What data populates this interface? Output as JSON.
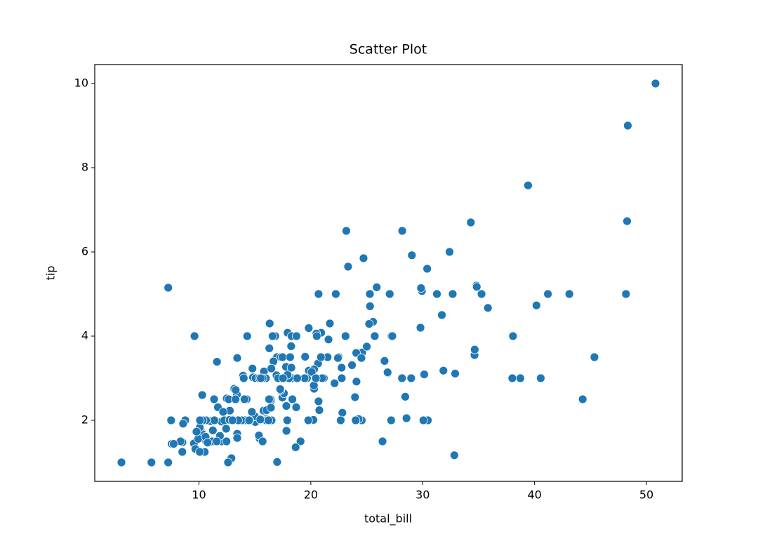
{
  "chart_data": {
    "type": "scatter",
    "title": "Scatter Plot",
    "x_label": "total_bill",
    "y_label": "tip",
    "color": "#1f77b4",
    "x": [
      16.99,
      10.34,
      21.01,
      23.68,
      24.59,
      25.29,
      8.77,
      26.88,
      15.04,
      14.78,
      10.27,
      35.26,
      15.42,
      18.43,
      14.83,
      21.58,
      10.33,
      16.29,
      16.97,
      20.65,
      17.92,
      20.29,
      15.77,
      39.42,
      19.82,
      17.81,
      13.37,
      12.69,
      21.7,
      19.65,
      9.55,
      18.35,
      15.06,
      20.69,
      17.78,
      24.06,
      16.31,
      16.93,
      18.69,
      31.27,
      16.04,
      17.46,
      13.94,
      9.68,
      30.4,
      18.29,
      22.23,
      32.4,
      28.55,
      18.04,
      12.54,
      10.29,
      34.81,
      9.94,
      25.56,
      19.49,
      38.01,
      26.41,
      11.24,
      48.27,
      20.29,
      13.81,
      11.02,
      18.29,
      17.59,
      20.08,
      16.45,
      3.07,
      20.23,
      15.01,
      12.02,
      17.07,
      26.86,
      25.28,
      14.73,
      10.51,
      17.92,
      27.2,
      22.76,
      17.29,
      19.44,
      16.66,
      10.07,
      32.68,
      15.98,
      34.83,
      13.03,
      18.28,
      24.71,
      21.16,
      28.97,
      22.49,
      5.75,
      16.32,
      22.75,
      40.17,
      27.28,
      12.03,
      21.01,
      12.46,
      11.35,
      15.38,
      44.3,
      22.42,
      20.92,
      15.36,
      20.49,
      25.21,
      18.24,
      14.31,
      14.0,
      7.25,
      38.07,
      23.95,
      25.71,
      17.31,
      29.93,
      10.65,
      12.43,
      24.08,
      11.69,
      13.42,
      14.26,
      15.95,
      12.48,
      29.8,
      8.52,
      14.52,
      11.38,
      22.82,
      19.08,
      20.27,
      11.17,
      12.26,
      18.26,
      8.51,
      10.33,
      14.15,
      16.0,
      13.16,
      17.47,
      34.3,
      41.19,
      27.05,
      16.43,
      8.35,
      18.64,
      11.87,
      9.78,
      7.51,
      14.07,
      13.13,
      17.26,
      24.55,
      19.77,
      29.85,
      48.17,
      25.0,
      13.39,
      16.49,
      21.5,
      12.66,
      16.21,
      13.81,
      17.51,
      24.52,
      20.76,
      31.71,
      10.59,
      10.63,
      50.81,
      15.81,
      7.25,
      31.85,
      16.82,
      32.9,
      17.89,
      14.48,
      9.6,
      34.63,
      34.65,
      23.33,
      45.35,
      23.17,
      40.55,
      20.69,
      20.9,
      30.46,
      18.15,
      23.1,
      15.69,
      19.81,
      28.44,
      15.48,
      16.58,
      7.56,
      10.34,
      43.11,
      13.0,
      13.51,
      18.71,
      12.74,
      13.0,
      16.4,
      20.53,
      16.47,
      26.59,
      38.73,
      24.27,
      12.76,
      30.06,
      25.89,
      48.33,
      13.27,
      28.17,
      12.9,
      28.15,
      11.59,
      7.74,
      30.14,
      12.16,
      13.42,
      8.58,
      15.98,
      13.42,
      16.27,
      10.09,
      20.45,
      13.28,
      22.12,
      24.01,
      15.69,
      11.61,
      10.77,
      15.53,
      10.07,
      12.6,
      32.83,
      35.83,
      29.03,
      27.18,
      22.67,
      17.82,
      18.78
    ],
    "values": [
      1.01,
      1.66,
      3.5,
      3.31,
      3.61,
      4.71,
      2.0,
      3.12,
      1.96,
      3.23,
      1.71,
      5.0,
      1.57,
      3.0,
      3.02,
      3.92,
      1.67,
      3.71,
      3.5,
      3.35,
      4.08,
      2.75,
      2.23,
      7.58,
      3.18,
      2.34,
      2.0,
      2.0,
      4.3,
      3.0,
      1.45,
      2.5,
      3.0,
      2.45,
      3.27,
      3.6,
      2.0,
      3.07,
      2.31,
      5.0,
      2.24,
      2.54,
      3.06,
      1.32,
      5.6,
      3.0,
      5.0,
      6.0,
      2.05,
      3.0,
      2.5,
      2.6,
      5.2,
      1.56,
      4.34,
      3.51,
      3.0,
      1.5,
      1.76,
      6.73,
      3.21,
      2.0,
      1.98,
      3.76,
      2.64,
      3.15,
      2.47,
      1.0,
      2.01,
      2.09,
      1.97,
      3.0,
      3.14,
      5.0,
      2.2,
      1.25,
      3.08,
      4.0,
      3.0,
      2.71,
      3.0,
      3.4,
      1.83,
      5.0,
      2.03,
      5.17,
      2.0,
      4.0,
      5.85,
      3.0,
      3.0,
      3.5,
      1.0,
      4.3,
      3.25,
      4.73,
      4.0,
      1.5,
      3.0,
      1.5,
      2.5,
      3.0,
      2.5,
      3.48,
      4.08,
      1.64,
      4.06,
      4.29,
      3.76,
      4.0,
      3.0,
      1.0,
      4.0,
      2.55,
      4.0,
      3.5,
      5.07,
      1.5,
      1.8,
      2.92,
      2.31,
      1.68,
      2.5,
      2.0,
      2.52,
      4.2,
      1.48,
      2.0,
      2.0,
      2.18,
      1.5,
      2.83,
      1.5,
      2.0,
      3.25,
      1.25,
      2.0,
      2.0,
      2.0,
      2.75,
      3.5,
      6.7,
      5.0,
      5.0,
      2.3,
      1.5,
      1.36,
      1.63,
      1.73,
      2.0,
      2.5,
      2.0,
      2.74,
      2.0,
      2.0,
      5.14,
      5.0,
      3.75,
      2.61,
      2.0,
      3.5,
      2.5,
      2.0,
      2.0,
      3.0,
      3.48,
      2.24,
      4.5,
      1.61,
      2.0,
      10.0,
      3.16,
      5.15,
      3.18,
      4.0,
      3.11,
      2.0,
      2.0,
      4.0,
      3.55,
      3.68,
      5.65,
      3.5,
      6.5,
      3.0,
      5.0,
      3.5,
      2.0,
      3.5,
      4.0,
      1.5,
      4.19,
      2.56,
      2.02,
      4.0,
      1.44,
      2.0,
      5.0,
      2.0,
      2.0,
      4.0,
      2.01,
      2.0,
      2.5,
      4.0,
      3.23,
      3.41,
      3.0,
      2.03,
      2.23,
      2.0,
      5.16,
      9.0,
      2.5,
      6.5,
      1.1,
      3.0,
      1.5,
      1.44,
      3.09,
      2.2,
      3.48,
      1.92,
      3.0,
      1.58,
      2.5,
      2.0,
      3.0,
      2.72,
      2.88,
      2.0,
      3.0,
      3.39,
      1.47,
      3.0,
      1.25,
      1.0,
      1.17,
      4.67,
      5.92,
      2.0,
      2.0,
      1.75,
      3.0
    ],
    "xlim": [
      0.683,
      53.197
    ],
    "xticks": [
      10,
      20,
      30,
      40,
      50
    ],
    "ylim": [
      0.55,
      10.45
    ],
    "yticks": [
      2,
      4,
      6,
      8,
      10
    ]
  }
}
